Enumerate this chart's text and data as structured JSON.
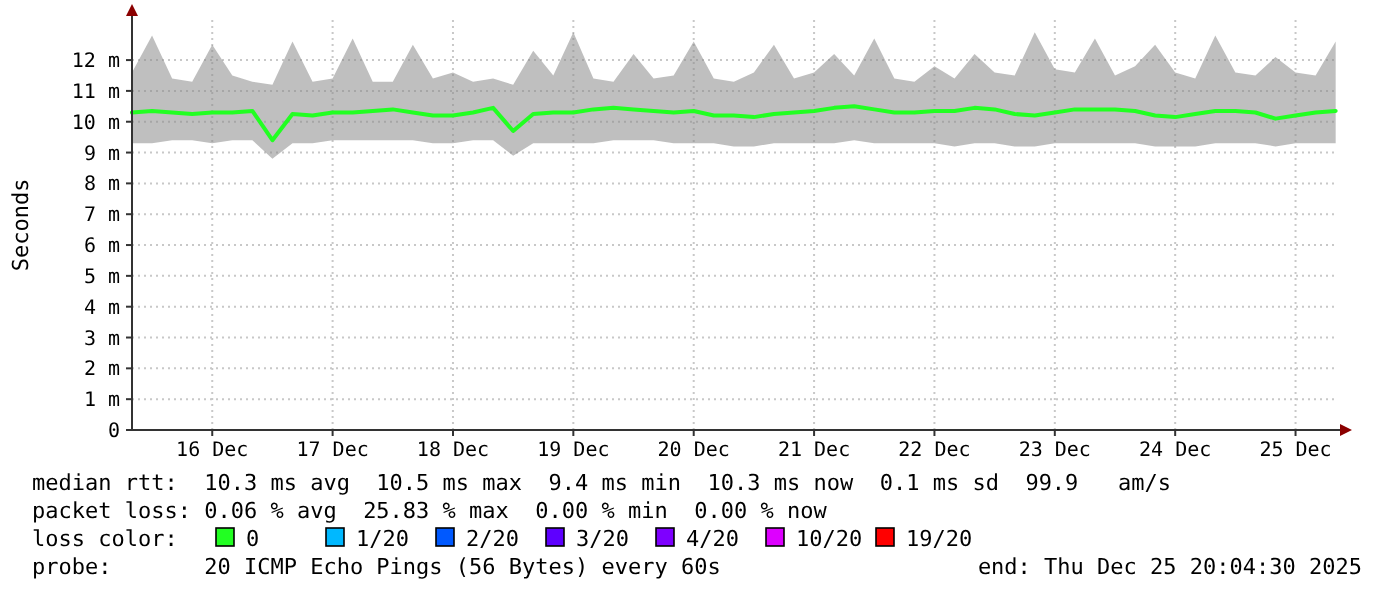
{
  "chart_data": {
    "type": "line",
    "ylabel": "Seconds",
    "x": [
      "2025-12-15T20:00",
      "2025-12-16T00:00",
      "2025-12-16T04:00",
      "2025-12-16T08:00",
      "2025-12-16T12:00",
      "2025-12-16T16:00",
      "2025-12-16T20:00",
      "2025-12-17T00:00",
      "2025-12-17T04:00",
      "2025-12-17T08:00",
      "2025-12-17T12:00",
      "2025-12-17T16:00",
      "2025-12-17T20:00",
      "2025-12-18T00:00",
      "2025-12-18T04:00",
      "2025-12-18T08:00",
      "2025-12-18T12:00",
      "2025-12-18T16:00",
      "2025-12-18T20:00",
      "2025-12-19T00:00",
      "2025-12-19T04:00",
      "2025-12-19T08:00",
      "2025-12-19T12:00",
      "2025-12-19T16:00",
      "2025-12-19T20:00",
      "2025-12-20T00:00",
      "2025-12-20T04:00",
      "2025-12-20T08:00",
      "2025-12-20T12:00",
      "2025-12-20T16:00",
      "2025-12-20T20:00",
      "2025-12-21T00:00",
      "2025-12-21T04:00",
      "2025-12-21T08:00",
      "2025-12-21T12:00",
      "2025-12-21T16:00",
      "2025-12-21T20:00",
      "2025-12-22T00:00",
      "2025-12-22T04:00",
      "2025-12-22T08:00",
      "2025-12-22T12:00",
      "2025-12-22T16:00",
      "2025-12-22T20:00",
      "2025-12-23T00:00",
      "2025-12-23T04:00",
      "2025-12-23T08:00",
      "2025-12-23T12:00",
      "2025-12-23T16:00",
      "2025-12-23T20:00",
      "2025-12-24T00:00",
      "2025-12-24T04:00",
      "2025-12-24T08:00",
      "2025-12-24T12:00",
      "2025-12-24T16:00",
      "2025-12-24T20:00",
      "2025-12-25T00:00",
      "2025-12-25T04:00",
      "2025-12-25T08:00",
      "2025-12-25T12:00",
      "2025-12-25T16:00",
      "2025-12-25T20:00"
    ],
    "series": [
      {
        "color": "#22ff22",
        "values": [
          10.3,
          10.35,
          10.3,
          10.25,
          10.3,
          10.3,
          10.35,
          9.4,
          10.25,
          10.2,
          10.3,
          10.3,
          10.35,
          10.4,
          10.3,
          10.2,
          10.2,
          10.3,
          10.45,
          9.7,
          10.25,
          10.3,
          10.3,
          10.4,
          10.45,
          10.4,
          10.35,
          10.3,
          10.35,
          10.2,
          10.2,
          10.15,
          10.25,
          10.3,
          10.35,
          10.45,
          10.5,
          10.4,
          10.3,
          10.3,
          10.35,
          10.35,
          10.45,
          10.4,
          10.25,
          10.2,
          10.3,
          10.4,
          10.4,
          10.4,
          10.35,
          10.2,
          10.15,
          10.25,
          10.35,
          10.35,
          10.3,
          10.1,
          10.2,
          10.3,
          10.35
        ],
        "upper": [
          11.6,
          12.8,
          11.4,
          11.3,
          12.5,
          11.5,
          11.3,
          11.2,
          12.6,
          11.3,
          11.4,
          12.7,
          11.3,
          11.3,
          12.5,
          11.4,
          11.6,
          11.3,
          11.4,
          11.2,
          12.3,
          11.5,
          12.9,
          11.4,
          11.3,
          12.2,
          11.4,
          11.5,
          12.6,
          11.4,
          11.3,
          11.6,
          12.5,
          11.4,
          11.6,
          12.2,
          11.5,
          12.7,
          11.4,
          11.3,
          11.8,
          11.4,
          12.2,
          11.6,
          11.5,
          12.9,
          11.7,
          11.6,
          12.7,
          11.5,
          11.8,
          12.5,
          11.6,
          11.4,
          12.8,
          11.6,
          11.5,
          12.1,
          11.6,
          11.5,
          12.6
        ],
        "lower": [
          9.3,
          9.3,
          9.4,
          9.4,
          9.3,
          9.4,
          9.4,
          8.8,
          9.3,
          9.3,
          9.4,
          9.4,
          9.4,
          9.4,
          9.4,
          9.3,
          9.3,
          9.4,
          9.4,
          8.9,
          9.3,
          9.3,
          9.3,
          9.3,
          9.4,
          9.4,
          9.4,
          9.3,
          9.3,
          9.3,
          9.2,
          9.2,
          9.3,
          9.3,
          9.3,
          9.3,
          9.4,
          9.3,
          9.3,
          9.3,
          9.3,
          9.2,
          9.3,
          9.3,
          9.2,
          9.2,
          9.3,
          9.3,
          9.3,
          9.3,
          9.3,
          9.2,
          9.2,
          9.2,
          9.3,
          9.3,
          9.3,
          9.2,
          9.3,
          9.3,
          9.3
        ]
      }
    ],
    "xlim": [
      "2025-12-15T20:00",
      "2025-12-25T20:04"
    ],
    "xticks": [
      {
        "value": "2025-12-16T12:00",
        "label": "16 Dec"
      },
      {
        "value": "2025-12-17T12:00",
        "label": "17 Dec"
      },
      {
        "value": "2025-12-18T12:00",
        "label": "18 Dec"
      },
      {
        "value": "2025-12-19T12:00",
        "label": "19 Dec"
      },
      {
        "value": "2025-12-20T12:00",
        "label": "20 Dec"
      },
      {
        "value": "2025-12-21T12:00",
        "label": "21 Dec"
      },
      {
        "value": "2025-12-22T12:00",
        "label": "22 Dec"
      },
      {
        "value": "2025-12-23T12:00",
        "label": "23 Dec"
      },
      {
        "value": "2025-12-24T12:00",
        "label": "24 Dec"
      },
      {
        "value": "2025-12-25T12:00",
        "label": "25 Dec"
      }
    ],
    "ylim": [
      0,
      13.3
    ],
    "yticks": [
      0,
      {
        "value": 1,
        "label": "1 m"
      },
      {
        "value": 2,
        "label": "2 m"
      },
      {
        "value": 3,
        "label": "3 m"
      },
      {
        "value": 4,
        "label": "4 m"
      },
      {
        "value": 5,
        "label": "5 m"
      },
      {
        "value": 6,
        "label": "6 m"
      },
      {
        "value": 7,
        "label": "7 m"
      },
      {
        "value": 8,
        "label": "8 m"
      },
      {
        "value": 9,
        "label": "9 m"
      },
      {
        "value": 10,
        "label": "10 m"
      },
      {
        "value": 11,
        "label": "11 m"
      },
      {
        "value": 12,
        "label": "12 m"
      }
    ],
    "grid": true,
    "marker": "none",
    "line_style": "solid",
    "annotations": [
      "median rtt:  10.3 ms avg  10.5 ms max  9.4 ms min  10.3 ms now  0.1 ms sd  99.9   am/s",
      "packet loss: 0.06 % avg  25.83 % max  0.00 % min  0.00 % now",
      "loss color:",
      "0",
      "1/20",
      "2/20",
      "3/20",
      "4/20",
      "10/20",
      "19/20",
      "probe:       20 ICMP Echo Pings (56 Bytes) every 60s",
      "end: Thu Dec 25 20:04:30 2025"
    ]
  }
}
